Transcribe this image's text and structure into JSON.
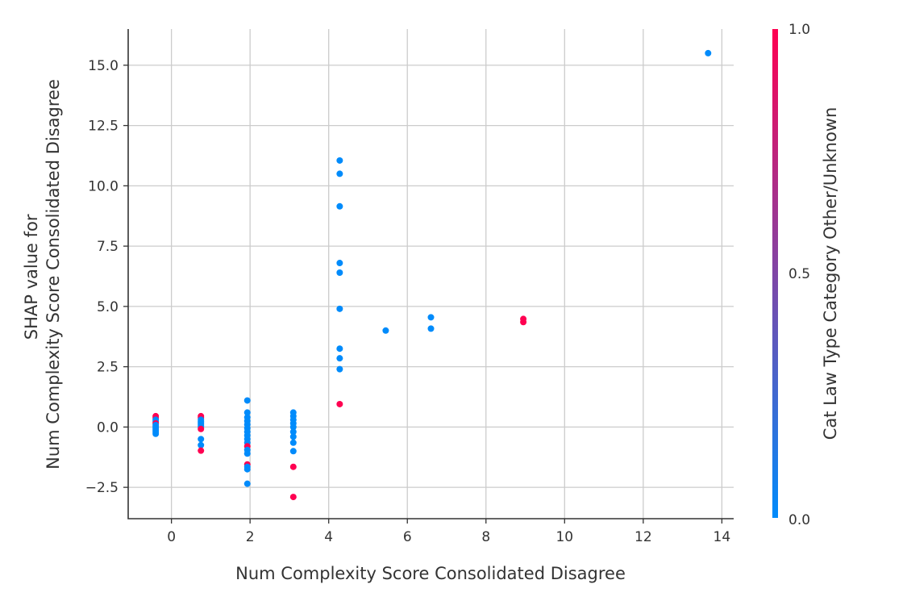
{
  "chart_data": {
    "type": "scatter",
    "title": "",
    "xlabel": "Num  Complexity Score Consolidated Disagree",
    "ylabel": [
      "SHAP value for",
      "Num  Complexity Score Consolidated Disagree"
    ],
    "xlim": [
      -1.1,
      14.3
    ],
    "ylim": [
      -3.8,
      16.5
    ],
    "x_ticks": [
      0,
      2,
      4,
      6,
      8,
      10,
      12,
      14
    ],
    "x_tick_labels": [
      "0",
      "2",
      "4",
      "6",
      "8",
      "10",
      "12",
      "14"
    ],
    "y_ticks": [
      -2.5,
      0,
      2.5,
      5,
      7.5,
      10,
      12.5,
      15
    ],
    "y_tick_labels": [
      "−2.5",
      "0.0",
      "2.5",
      "5.0",
      "7.5",
      "10.0",
      "12.5",
      "15.0"
    ],
    "grid": true,
    "colorbar": {
      "label": "Cat  Law Type Category Other/Unknown",
      "tick_labels": [
        "0.0",
        "0.5",
        "1.0"
      ],
      "color_low": "#008bfb",
      "color_high": "#ff0051"
    },
    "point_colors": {
      "0": "#008bfb",
      "1": "#ff0051"
    },
    "points": [
      {
        "x": -0.4,
        "y": 0.45,
        "c": 1
      },
      {
        "x": -0.4,
        "y": 0.38,
        "c": 1
      },
      {
        "x": -0.4,
        "y": 0.3,
        "c": 0
      },
      {
        "x": -0.4,
        "y": 0.22,
        "c": 0
      },
      {
        "x": -0.4,
        "y": 0.15,
        "c": 1
      },
      {
        "x": -0.4,
        "y": 0.08,
        "c": 0
      },
      {
        "x": -0.4,
        "y": 0.0,
        "c": 0
      },
      {
        "x": -0.4,
        "y": -0.07,
        "c": 0
      },
      {
        "x": -0.4,
        "y": -0.14,
        "c": 0
      },
      {
        "x": -0.4,
        "y": -0.21,
        "c": 0
      },
      {
        "x": -0.4,
        "y": -0.28,
        "c": 0
      },
      {
        "x": 0.75,
        "y": 0.45,
        "c": 1
      },
      {
        "x": 0.75,
        "y": 0.38,
        "c": 1
      },
      {
        "x": 0.75,
        "y": 0.3,
        "c": 0
      },
      {
        "x": 0.75,
        "y": 0.22,
        "c": 0
      },
      {
        "x": 0.75,
        "y": 0.15,
        "c": 0
      },
      {
        "x": 0.75,
        "y": 0.08,
        "c": 0
      },
      {
        "x": 0.75,
        "y": 0.0,
        "c": 0
      },
      {
        "x": 0.75,
        "y": -0.08,
        "c": 1
      },
      {
        "x": 0.75,
        "y": -0.5,
        "c": 0
      },
      {
        "x": 0.75,
        "y": -0.75,
        "c": 0
      },
      {
        "x": 0.75,
        "y": -0.98,
        "c": 1
      },
      {
        "x": 1.93,
        "y": 1.1,
        "c": 0
      },
      {
        "x": 1.93,
        "y": 0.6,
        "c": 0
      },
      {
        "x": 1.93,
        "y": 0.4,
        "c": 0
      },
      {
        "x": 1.93,
        "y": 0.25,
        "c": 0
      },
      {
        "x": 1.93,
        "y": 0.1,
        "c": 0
      },
      {
        "x": 1.93,
        "y": -0.05,
        "c": 0
      },
      {
        "x": 1.93,
        "y": -0.2,
        "c": 0
      },
      {
        "x": 1.93,
        "y": -0.35,
        "c": 0
      },
      {
        "x": 1.93,
        "y": -0.5,
        "c": 0
      },
      {
        "x": 1.93,
        "y": -0.65,
        "c": 0
      },
      {
        "x": 1.93,
        "y": -0.8,
        "c": 1
      },
      {
        "x": 1.93,
        "y": -0.95,
        "c": 0
      },
      {
        "x": 1.93,
        "y": -1.1,
        "c": 0
      },
      {
        "x": 1.93,
        "y": -1.55,
        "c": 1
      },
      {
        "x": 1.93,
        "y": -1.65,
        "c": 0
      },
      {
        "x": 1.93,
        "y": -1.75,
        "c": 0
      },
      {
        "x": 1.93,
        "y": -2.35,
        "c": 0
      },
      {
        "x": 3.1,
        "y": 0.6,
        "c": 0
      },
      {
        "x": 3.1,
        "y": 0.45,
        "c": 0
      },
      {
        "x": 3.1,
        "y": 0.3,
        "c": 0
      },
      {
        "x": 3.1,
        "y": 0.15,
        "c": 0
      },
      {
        "x": 3.1,
        "y": 0.0,
        "c": 0
      },
      {
        "x": 3.1,
        "y": -0.2,
        "c": 0
      },
      {
        "x": 3.1,
        "y": -0.4,
        "c": 0
      },
      {
        "x": 3.1,
        "y": -0.65,
        "c": 0
      },
      {
        "x": 3.1,
        "y": -1.0,
        "c": 0
      },
      {
        "x": 3.1,
        "y": -1.65,
        "c": 1
      },
      {
        "x": 3.1,
        "y": -2.9,
        "c": 1
      },
      {
        "x": 4.28,
        "y": 11.05,
        "c": 0
      },
      {
        "x": 4.28,
        "y": 10.5,
        "c": 0
      },
      {
        "x": 4.28,
        "y": 9.15,
        "c": 0
      },
      {
        "x": 4.28,
        "y": 6.8,
        "c": 0
      },
      {
        "x": 4.28,
        "y": 6.4,
        "c": 0
      },
      {
        "x": 4.28,
        "y": 4.9,
        "c": 0
      },
      {
        "x": 4.28,
        "y": 3.25,
        "c": 0
      },
      {
        "x": 4.28,
        "y": 2.85,
        "c": 0
      },
      {
        "x": 4.28,
        "y": 2.4,
        "c": 0
      },
      {
        "x": 4.28,
        "y": 0.95,
        "c": 1
      },
      {
        "x": 5.45,
        "y": 4.0,
        "c": 0
      },
      {
        "x": 6.6,
        "y": 4.55,
        "c": 0
      },
      {
        "x": 6.6,
        "y": 4.08,
        "c": 0
      },
      {
        "x": 8.95,
        "y": 4.48,
        "c": 1
      },
      {
        "x": 8.95,
        "y": 4.35,
        "c": 1
      },
      {
        "x": 13.65,
        "y": 15.5,
        "c": 0
      }
    ]
  }
}
